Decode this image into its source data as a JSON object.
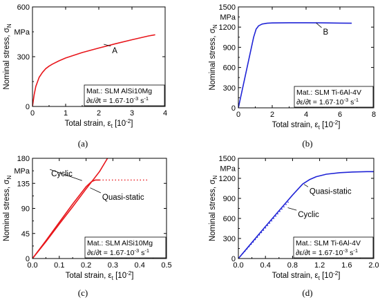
{
  "chart_data": [
    {
      "panel_label": "(a)",
      "type": "line",
      "xlabel_prefix": "Total strain, ε",
      "xlabel_sub": "t",
      "xlabel_suffix": " [10",
      "xlabel_sup": "-2",
      "xlabel_end": "]",
      "ylabel_prefix": "Nominal stress, σ",
      "ylabel_sub": "N",
      "unit_label": "MPa",
      "xlim": [
        0,
        4
      ],
      "ylim": [
        0,
        600
      ],
      "xticks": [
        0,
        1,
        2,
        3,
        4
      ],
      "yticks": [
        0,
        300,
        600
      ],
      "tick_labels_x": [
        "0",
        "1",
        "2",
        "3",
        "4"
      ],
      "tick_labels_y": [
        "0",
        "300",
        "600"
      ],
      "info_line1": "Mat.: SLM AlSi10Mg",
      "info_line2": "∂ε/∂t = 1.67·10",
      "info_exp": "-3",
      "info_unit": " s",
      "info_unit_exp": "-1",
      "annotations": [
        {
          "text": "A",
          "x": 2.4,
          "y": 330,
          "arrow_to": [
            2.15,
            375
          ]
        }
      ],
      "series": [
        {
          "color": "#e8161b",
          "style": "solid",
          "x": [
            0,
            0.05,
            0.1,
            0.2,
            0.3,
            0.4,
            0.5,
            0.6,
            0.8,
            1.0,
            1.5,
            2.0,
            2.5,
            3.0,
            3.5,
            3.7
          ],
          "y": [
            0,
            70,
            120,
            175,
            205,
            228,
            243,
            255,
            275,
            292,
            325,
            352,
            378,
            402,
            425,
            432
          ]
        }
      ]
    },
    {
      "panel_label": "(b)",
      "type": "line",
      "xlabel_prefix": "Total strain, ε",
      "xlabel_sub": "t",
      "xlabel_suffix": " [10",
      "xlabel_sup": "-2",
      "xlabel_end": "]",
      "ylabel_prefix": "Nominal stress, σ",
      "ylabel_sub": "N",
      "unit_label": "MPa",
      "xlim": [
        0,
        8
      ],
      "ylim": [
        0,
        1500
      ],
      "xticks": [
        0,
        2,
        4,
        6,
        8
      ],
      "yticks": [
        0,
        300,
        600,
        900,
        1200,
        1500
      ],
      "tick_labels_x": [
        "0",
        "2",
        "4",
        "6",
        "8"
      ],
      "tick_labels_y": [
        "0",
        "300",
        "600",
        "900",
        "1200",
        "1500"
      ],
      "info_line1": "Mat.: SLM Ti-6Al-4V",
      "info_line2": "∂ε/∂t = 1.67·10",
      "info_exp": "-3",
      "info_unit": " s",
      "info_unit_exp": "-1",
      "annotations": [
        {
          "text": "B",
          "x": 5.0,
          "y": 1110,
          "arrow_to": [
            4.6,
            1260
          ]
        }
      ],
      "series": [
        {
          "color": "#1f23d6",
          "style": "solid",
          "x": [
            0,
            0.9,
            1.05,
            1.2,
            1.4,
            1.7,
            2.0,
            3.0,
            4.0,
            5.0,
            6.0,
            6.7
          ],
          "y": [
            0,
            1050,
            1170,
            1220,
            1245,
            1258,
            1262,
            1265,
            1265,
            1263,
            1260,
            1258
          ]
        }
      ]
    },
    {
      "panel_label": "(c)",
      "type": "line",
      "xlabel_prefix": "Total strain, ε",
      "xlabel_sub": "t",
      "xlabel_suffix": " [10",
      "xlabel_sup": "-2",
      "xlabel_end": "]",
      "ylabel_prefix": "Nominal stress, σ",
      "ylabel_sub": "N",
      "unit_label": "MPa",
      "xlim": [
        0,
        0.5
      ],
      "ylim": [
        0,
        180
      ],
      "xticks": [
        0,
        0.1,
        0.2,
        0.3,
        0.4,
        0.5
      ],
      "yticks": [
        0,
        45,
        90,
        135,
        180
      ],
      "tick_labels_x": [
        "0.0",
        "0.1",
        "0.2",
        "0.3",
        "0.4",
        "0.5"
      ],
      "tick_labels_y": [
        "0",
        "45",
        "90",
        "135",
        "180"
      ],
      "info_line1": "Mat.: SLM AlSi10Mg",
      "info_line2": "∂ε/∂t = 1.67·10",
      "info_exp": "-3",
      "info_unit": " s",
      "info_unit_exp": "-1",
      "annotations": [
        {
          "text": "Cyclic",
          "x": 0.07,
          "y": 150,
          "arrow_to": [
            0.185,
            140
          ]
        },
        {
          "text": "Quasi-static",
          "x": 0.26,
          "y": 108,
          "arrow_to": [
            0.215,
            127
          ]
        }
      ],
      "series": [
        {
          "color": "#e8161b",
          "style": "solid",
          "x": [
            0,
            0.05,
            0.1,
            0.15,
            0.2,
            0.25,
            0.28
          ],
          "y": [
            0,
            30,
            62,
            93,
            125,
            156,
            180
          ]
        },
        {
          "color": "#e8161b",
          "style": "solid",
          "x": [
            0,
            0.05,
            0.1,
            0.15,
            0.2,
            0.22,
            0.235,
            0.25
          ],
          "y": [
            0,
            32,
            65,
            98,
            129,
            138,
            141,
            141
          ]
        },
        {
          "color": "#e8161b",
          "style": "dotted",
          "x": [
            0.25,
            0.3,
            0.35,
            0.4,
            0.43
          ],
          "y": [
            141,
            141,
            141,
            141,
            141
          ]
        }
      ]
    },
    {
      "panel_label": "(d)",
      "type": "line",
      "xlabel_prefix": "Total strain, ε",
      "xlabel_sub": "t",
      "xlabel_suffix": " [10",
      "xlabel_sup": "-2",
      "xlabel_end": "]",
      "ylabel_prefix": "Nominal stress, σ",
      "ylabel_sub": "N",
      "unit_label": "MPa",
      "xlim": [
        0,
        2.0
      ],
      "ylim": [
        0,
        1500
      ],
      "xticks": [
        0,
        0.4,
        0.8,
        1.2,
        1.6,
        2.0
      ],
      "yticks": [
        0,
        300,
        600,
        900,
        1200,
        1500
      ],
      "tick_labels_x": [
        "0.0",
        "0.4",
        "0.8",
        "1.2",
        "1.6",
        "2.0"
      ],
      "tick_labels_y": [
        "0",
        "300",
        "600",
        "900",
        "1200",
        "1500"
      ],
      "info_line1": "Mat.: SLM Ti-6Al-4V",
      "info_line2": "∂ε/∂t = 1.67·10",
      "info_exp": "-3",
      "info_unit": " s",
      "info_unit_exp": "-1",
      "annotations": [
        {
          "text": "Quasi-static",
          "x": 1.05,
          "y": 990,
          "arrow_to": [
            0.97,
            1110
          ]
        },
        {
          "text": "Cyclic",
          "x": 0.88,
          "y": 640,
          "arrow_to": [
            0.73,
            760
          ]
        }
      ],
      "series": [
        {
          "color": "#1f23d6",
          "style": "solid",
          "x": [
            0,
            0.2,
            0.4,
            0.6,
            0.8,
            0.95,
            1.05,
            1.15,
            1.3,
            1.5,
            1.7,
            1.9,
            2.0
          ],
          "y": [
            0,
            240,
            480,
            715,
            950,
            1115,
            1180,
            1225,
            1262,
            1285,
            1295,
            1300,
            1300
          ]
        },
        {
          "color": "#1f23d6",
          "style": "dotted",
          "x": [
            0,
            0.2,
            0.4,
            0.6,
            0.75
          ],
          "y": [
            0,
            225,
            455,
            690,
            860
          ]
        }
      ]
    }
  ]
}
